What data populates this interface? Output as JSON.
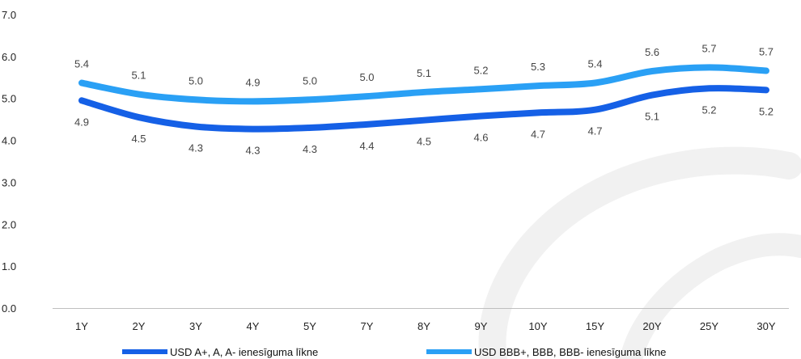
{
  "chart_data": {
    "type": "line",
    "title": "",
    "xlabel": "",
    "ylabel": "",
    "ylim": [
      0,
      7
    ],
    "y_ticks": [
      "0.0",
      "1.0",
      "2.0",
      "3.0",
      "4.0",
      "5.0",
      "6.0",
      "7.0"
    ],
    "categories": [
      "1Y",
      "2Y",
      "3Y",
      "4Y",
      "5Y",
      "7Y",
      "8Y",
      "9Y",
      "10Y",
      "15Y",
      "20Y",
      "25Y",
      "30Y"
    ],
    "grid": false,
    "legend_position": "bottom",
    "series": [
      {
        "name": "USD A+, A, A- ienesīguma līkne",
        "color": "#1560e6",
        "values": [
          4.95,
          4.55,
          4.33,
          4.27,
          4.3,
          4.38,
          4.48,
          4.58,
          4.66,
          4.73,
          5.08,
          5.24,
          5.2
        ],
        "labels": [
          "4.9",
          "4.5",
          "4.3",
          "4.3",
          "4.3",
          "4.4",
          "4.5",
          "4.6",
          "4.7",
          "4.7",
          "5.1",
          "5.2",
          "5.2"
        ],
        "label_position": "below"
      },
      {
        "name": "USD BBB+, BBB, BBB- ienesīguma līkne",
        "color": "#2aa0f5",
        "values": [
          5.37,
          5.1,
          4.97,
          4.93,
          4.97,
          5.05,
          5.15,
          5.22,
          5.3,
          5.37,
          5.65,
          5.74,
          5.66
        ],
        "labels": [
          "5.4",
          "5.1",
          "5.0",
          "4.9",
          "5.0",
          "5.0",
          "5.1",
          "5.2",
          "5.3",
          "5.4",
          "5.6",
          "5.7",
          "5.7"
        ],
        "label_position": "above"
      }
    ]
  }
}
